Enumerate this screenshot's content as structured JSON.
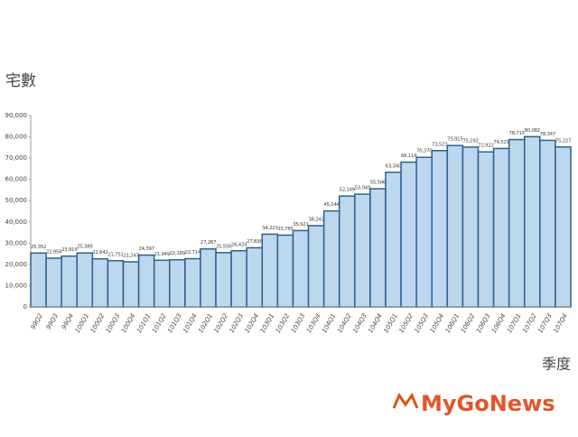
{
  "chart_data": {
    "type": "bar",
    "y_label": "宅數",
    "x_label": "季度",
    "watermark": "MyGoNews",
    "categories": [
      "99Q2",
      "99Q3",
      "99Q4",
      "100Q1",
      "100Q2",
      "100Q3",
      "100Q4",
      "101Q1",
      "101Q2",
      "101Q3",
      "101Q4",
      "102Q1",
      "102Q2",
      "102Q3",
      "102Q4",
      "103Q1",
      "103Q2",
      "103Q3",
      "103Q4",
      "104Q1",
      "104Q2",
      "104Q3",
      "104Q4",
      "105Q1",
      "105Q2",
      "105Q3",
      "105Q4",
      "106Q1",
      "106Q2",
      "106Q3",
      "106Q4",
      "107Q1",
      "107Q2",
      "107Q3",
      "107Q4"
    ],
    "values": [
      25352,
      22956,
      23919,
      25389,
      22642,
      21751,
      21247,
      24397,
      21949,
      22189,
      22714,
      27287,
      25556,
      26424,
      27838,
      34223,
      33785,
      35921,
      38242,
      45144,
      52149,
      53049,
      55586,
      63340,
      68114,
      70370,
      73523,
      75915,
      75192,
      72922,
      74529,
      78715,
      80082,
      78347,
      75227
    ],
    "value_labels": [
      "25,352",
      "22,956",
      "23,919",
      "25,389",
      "22,642",
      "21,751",
      "21,247",
      "24,397",
      "21,949",
      "22,189",
      "22,714",
      "27,287",
      "25,556",
      "26,424",
      "27,838",
      "34,223",
      "33,785",
      "35,921",
      "38,242",
      "45,144",
      "52,149",
      "53,049",
      "55,586",
      "63,340",
      "68,114",
      "70,370",
      "73,523",
      "75,915",
      "75,192",
      "72,922",
      "74,529",
      "78,715",
      "80,082",
      "78,347",
      "75,227"
    ],
    "color": "#bdd7ee",
    "edge_color": "#2f5f8f",
    "ylim": [
      0,
      90000
    ],
    "yticks": [
      0,
      {
        "value": 10000,
        "label": "10,000"
      },
      {
        "value": 20000,
        "label": "20,000"
      },
      {
        "value": 30000,
        "label": "30,000"
      },
      {
        "value": 40000,
        "label": "40,000"
      },
      {
        "value": 50000,
        "label": "50,000"
      },
      {
        "value": 60000,
        "label": "60,000"
      },
      {
        "value": 70000,
        "label": "70,000"
      },
      {
        "value": 80000,
        "label": "80,000"
      },
      {
        "value": 90000,
        "label": "90,000"
      }
    ]
  }
}
